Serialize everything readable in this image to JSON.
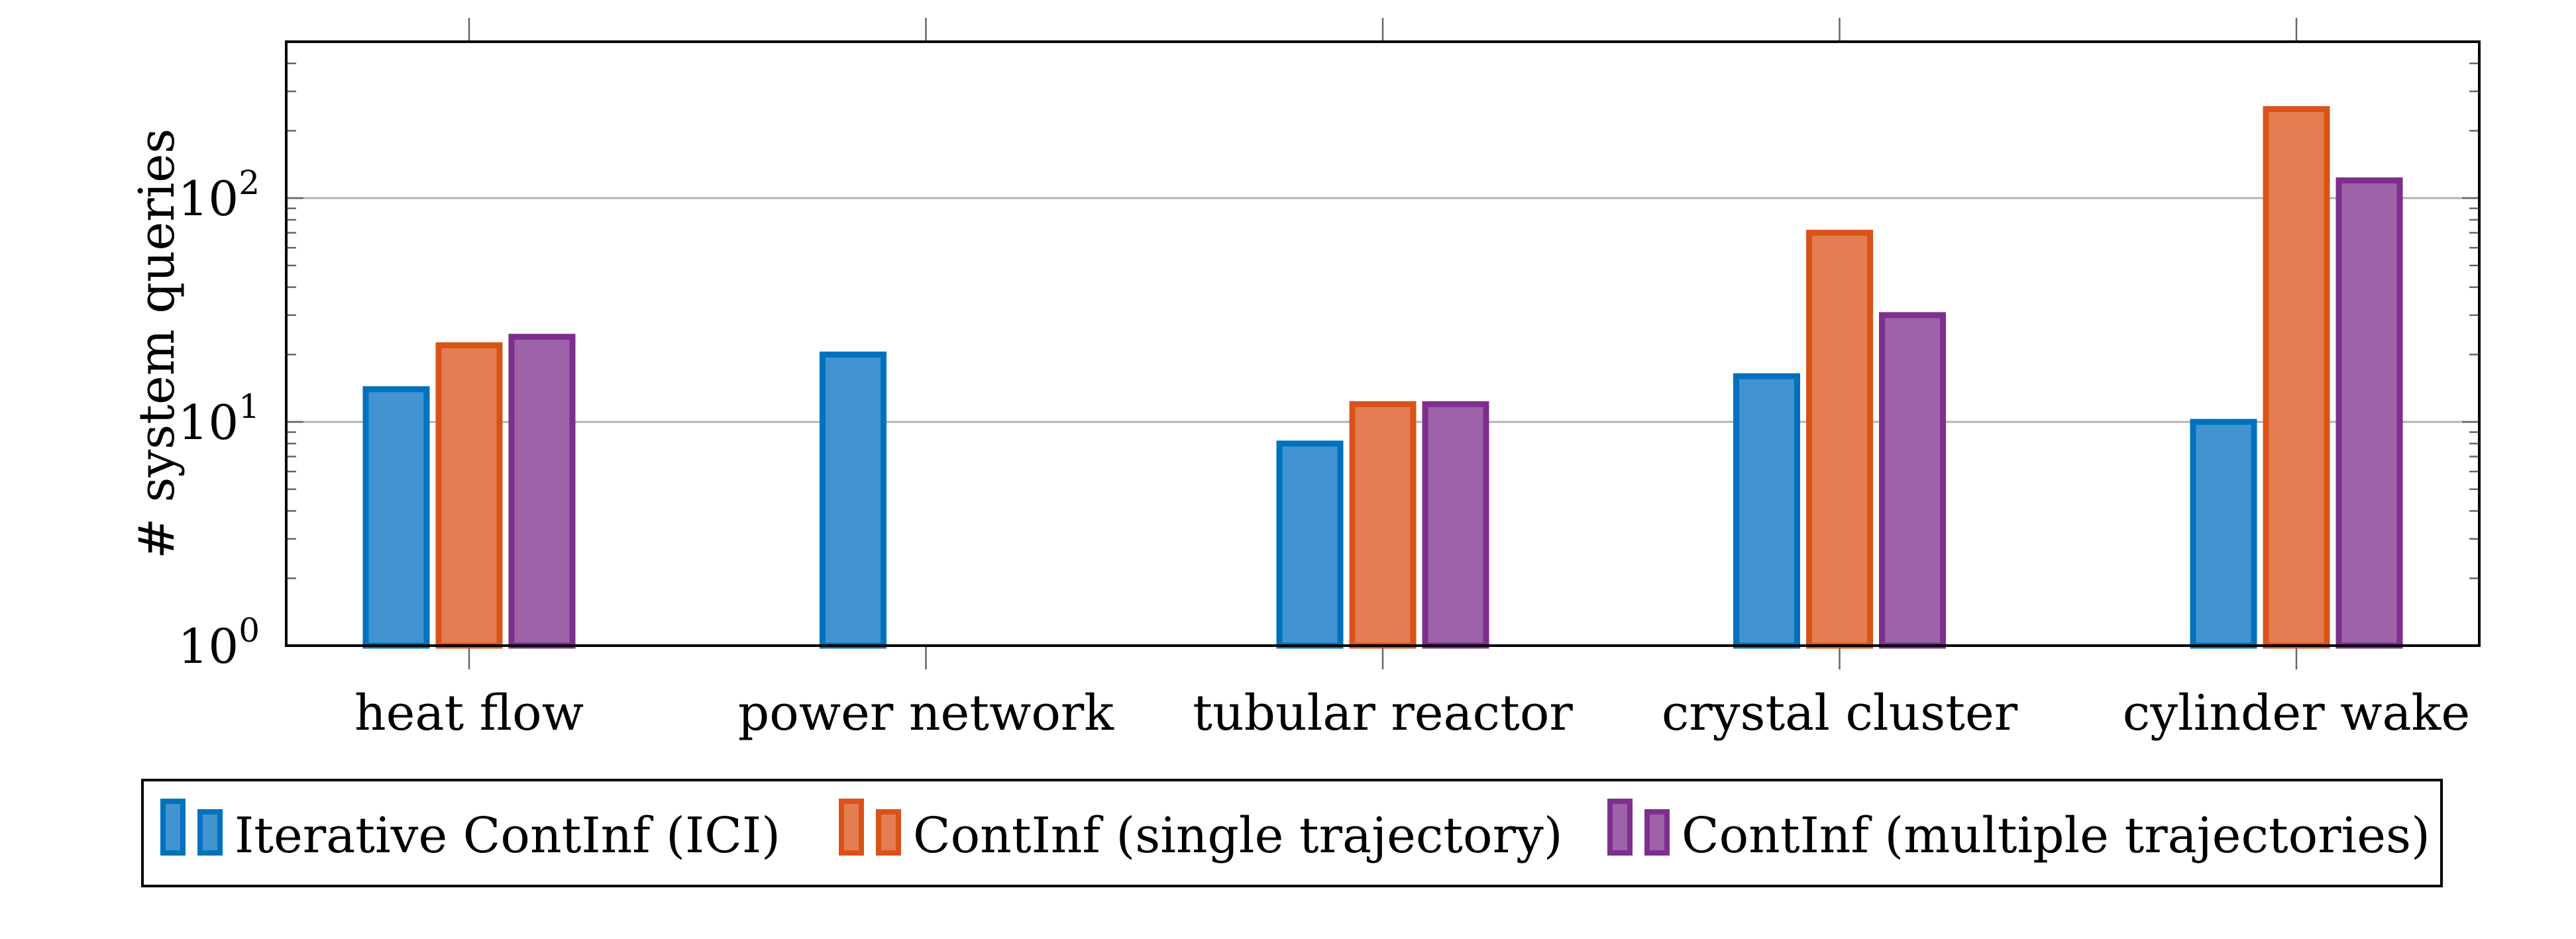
{
  "chart_data": {
    "type": "bar",
    "title": "",
    "xlabel": "",
    "ylabel": "# system queries",
    "yscale": "log",
    "ylim": [
      1,
      500
    ],
    "grid": "major y",
    "legend_position": "bottom",
    "categories": [
      "heat flow",
      "power network",
      "tubular reactor",
      "crystal cluster",
      "cylinder wake"
    ],
    "y_ticks": [
      {
        "value": 1,
        "base": "10",
        "exp": "0"
      },
      {
        "value": 10,
        "base": "10",
        "exp": "1"
      },
      {
        "value": 100,
        "base": "10",
        "exp": "2"
      }
    ],
    "series": [
      {
        "name": "Iterative ContInf (ICI)",
        "color": "#0072bd",
        "fill": "#4194d0",
        "values": [
          14,
          20,
          8,
          16,
          10
        ]
      },
      {
        "name": "ContInf (single trajectory)",
        "color": "#d95319",
        "fill": "#e47d52",
        "values": [
          22,
          null,
          12,
          70,
          250
        ]
      },
      {
        "name": "ContInf (multiple trajectories)",
        "color": "#7e2f8e",
        "fill": "#9e62a9",
        "values": [
          24,
          null,
          12,
          30,
          120
        ]
      }
    ]
  }
}
